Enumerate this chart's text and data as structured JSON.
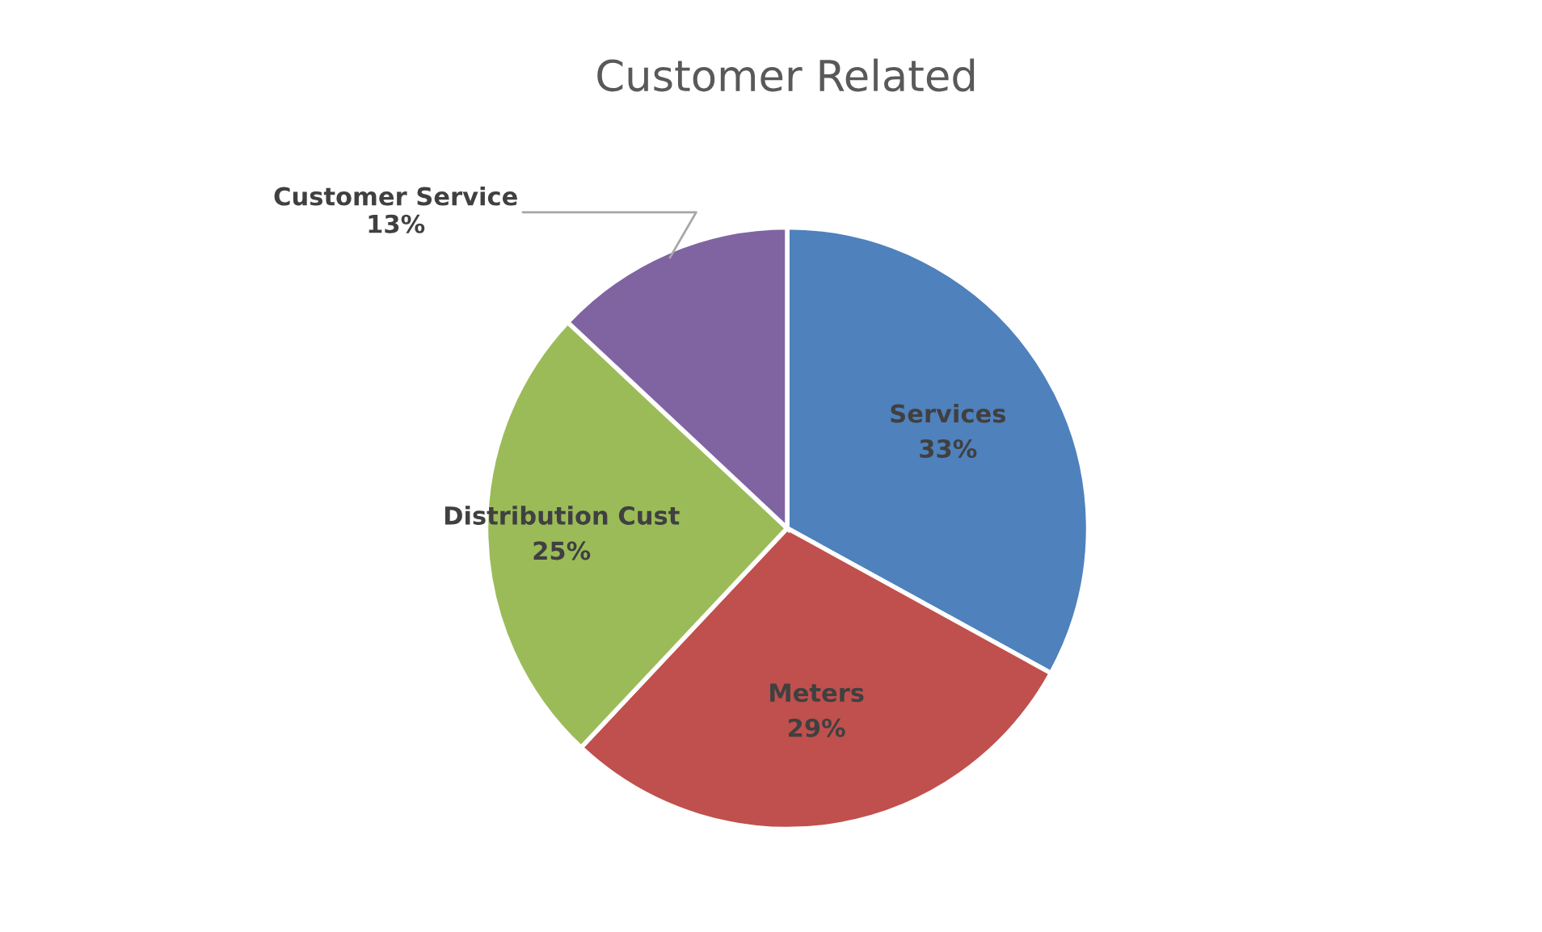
{
  "chart_data": {
    "type": "pie",
    "title": "Customer Related",
    "categories": [
      "Services",
      "Meters",
      "Distribution Cust",
      "Customer Service"
    ],
    "values": [
      33,
      29,
      25,
      13
    ],
    "colors": [
      "#4f81bd",
      "#c0504d",
      "#9bbb59",
      "#8064a2"
    ],
    "value_labels": [
      "33%",
      "29%",
      "25%",
      "13%"
    ],
    "legend": false
  }
}
